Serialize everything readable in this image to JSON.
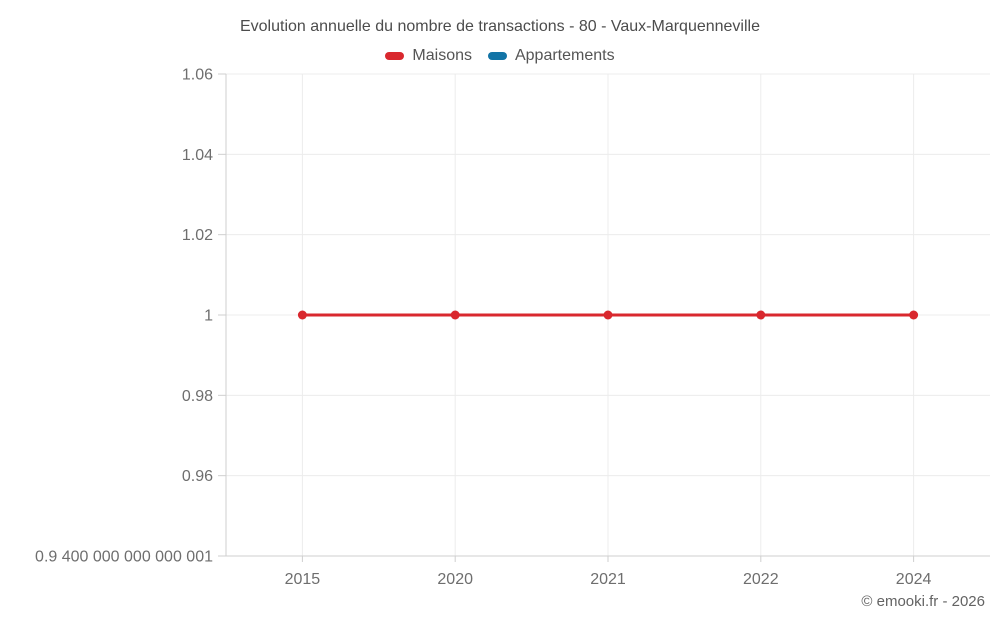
{
  "title": "Evolution annuelle du nombre de transactions - 80 - Vaux-Marquenneville",
  "attribution": "© emooki.fr - 2026",
  "colors": {
    "maisons": "#d9282e",
    "appartements": "#1274a6",
    "grid": "#ececec",
    "axis": "#cfcfcf",
    "label": "#6e6e6e",
    "title": "#4c4c4c"
  },
  "chart_data": {
    "type": "line",
    "title": "Evolution annuelle du nombre de transactions - 80 - Vaux-Marquenneville",
    "categories": [
      "2015",
      "2020",
      "2021",
      "2022",
      "2024"
    ],
    "series": [
      {
        "name": "Maisons",
        "color": "#d9282e",
        "values": [
          1,
          1,
          1,
          1,
          1
        ]
      },
      {
        "name": "Appartements",
        "color": "#1274a6",
        "values": []
      }
    ],
    "xlabel": "",
    "ylabel": "",
    "ylim": [
      0.94,
      1.06
    ],
    "y_ticks": [
      {
        "value": 1.06,
        "label": "1.06"
      },
      {
        "value": 1.04,
        "label": "1.04"
      },
      {
        "value": 1.02,
        "label": "1.02"
      },
      {
        "value": 1.0,
        "label": "1"
      },
      {
        "value": 0.98,
        "label": "0.98"
      },
      {
        "value": 0.96,
        "label": "0.96"
      },
      {
        "value": 0.94,
        "label": "0.9 400 000 000 000 001"
      }
    ],
    "grid": true,
    "legend_position": "top"
  }
}
